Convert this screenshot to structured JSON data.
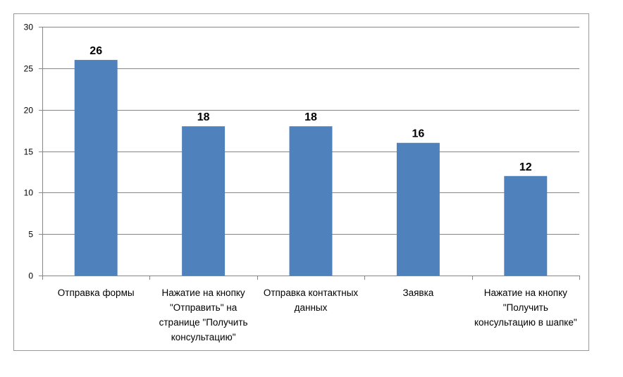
{
  "chart_data": {
    "type": "bar",
    "title": "",
    "xlabel": "",
    "ylabel": "",
    "categories": [
      "Отправка формы",
      "Нажатие на кнопку \"Отправить\" на странице \"Получить консультацию\"",
      "Отправка контактных данных",
      "Заявка",
      "Нажатие на кнопку \"Получить консультацию в шапке\""
    ],
    "values": [
      26,
      18,
      18,
      16,
      12
    ],
    "data_labels": [
      "26",
      "18",
      "18",
      "16",
      "12"
    ],
    "ylim": [
      0,
      30
    ],
    "yticks": [
      "0",
      "5",
      "10",
      "15",
      "20",
      "25",
      "30"
    ],
    "grid": true,
    "legend": "none",
    "colors": {
      "bar": "#4f81bd",
      "grid": "#868686",
      "axis": "#868686"
    }
  }
}
